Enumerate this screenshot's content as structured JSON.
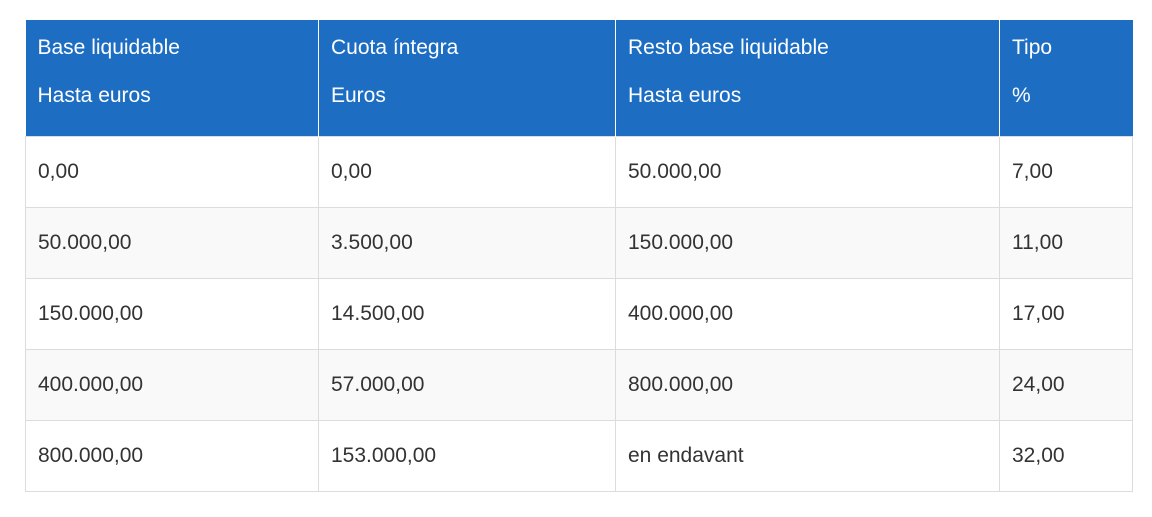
{
  "table": {
    "headers": [
      [
        "Base liquidable",
        "Hasta euros"
      ],
      [
        "Cuota íntegra",
        "Euros"
      ],
      [
        "Resto base liquidable",
        "Hasta euros"
      ],
      [
        "Tipo",
        "%"
      ]
    ],
    "rows": [
      [
        "0,00",
        "0,00",
        "50.000,00",
        "7,00"
      ],
      [
        "50.000,00",
        "3.500,00",
        "150.000,00",
        "11,00"
      ],
      [
        "150.000,00",
        "14.500,00",
        "400.000,00",
        "17,00"
      ],
      [
        "400.000,00",
        "57.000,00",
        "800.000,00",
        "24,00"
      ],
      [
        "800.000,00",
        "153.000,00",
        "en endavant",
        "32,00"
      ]
    ]
  },
  "colors": {
    "header_background": "#1d6ec2",
    "header_text": "#ffffff",
    "body_text": "#333333",
    "border": "#dcdcdc"
  }
}
